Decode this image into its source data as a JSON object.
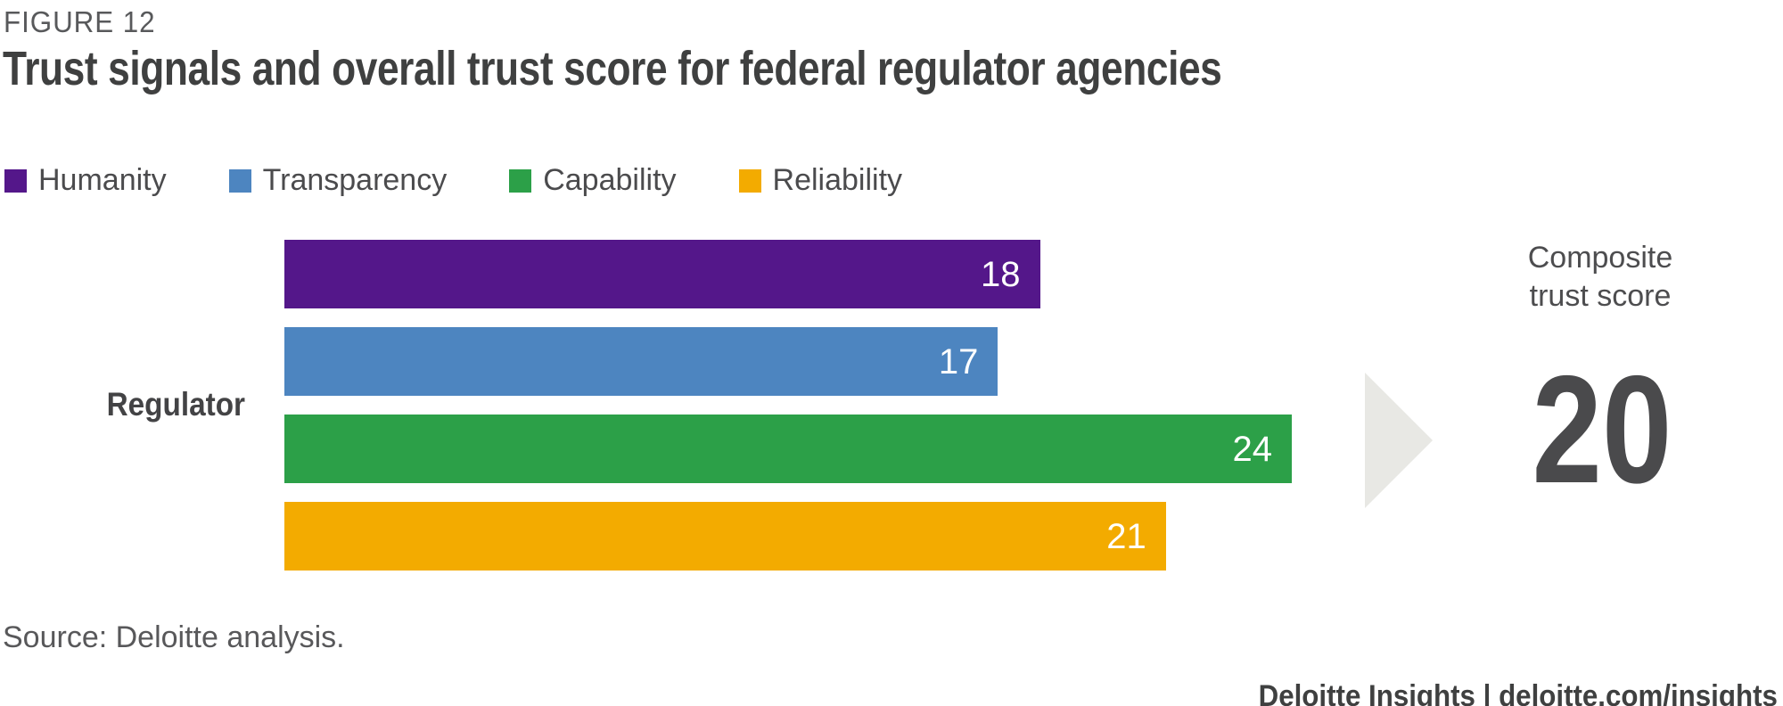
{
  "figure_label": "FIGURE 12",
  "title": "Trust signals and overall trust score for federal regulator agencies",
  "legend": [
    {
      "label": "Humanity",
      "color": "#54178a"
    },
    {
      "label": "Transparency",
      "color": "#4d85c0"
    },
    {
      "label": "Capability",
      "color": "#2ca048"
    },
    {
      "label": "Reliability",
      "color": "#f3ab00"
    }
  ],
  "chart_data": {
    "type": "bar",
    "orientation": "horizontal",
    "title": "Trust signals and overall trust score for federal regulator agencies",
    "group_label": "Regulator",
    "categories": [
      "Humanity",
      "Transparency",
      "Capability",
      "Reliability"
    ],
    "values": [
      18,
      17,
      24,
      21
    ],
    "colors": [
      "#54178a",
      "#4d85c0",
      "#2ca048",
      "#f3ab00"
    ],
    "xlim": [
      0,
      24
    ],
    "value_labels": "inside-end, white",
    "grid": "off",
    "legend_position": "top-left"
  },
  "composite": {
    "label_line1": "Composite",
    "label_line2": "trust score",
    "value": "20"
  },
  "arrow_color": "#e8e8e4",
  "source": "Source: Deloitte analysis.",
  "footer": "Deloitte Insights | deloitte.com/insights"
}
